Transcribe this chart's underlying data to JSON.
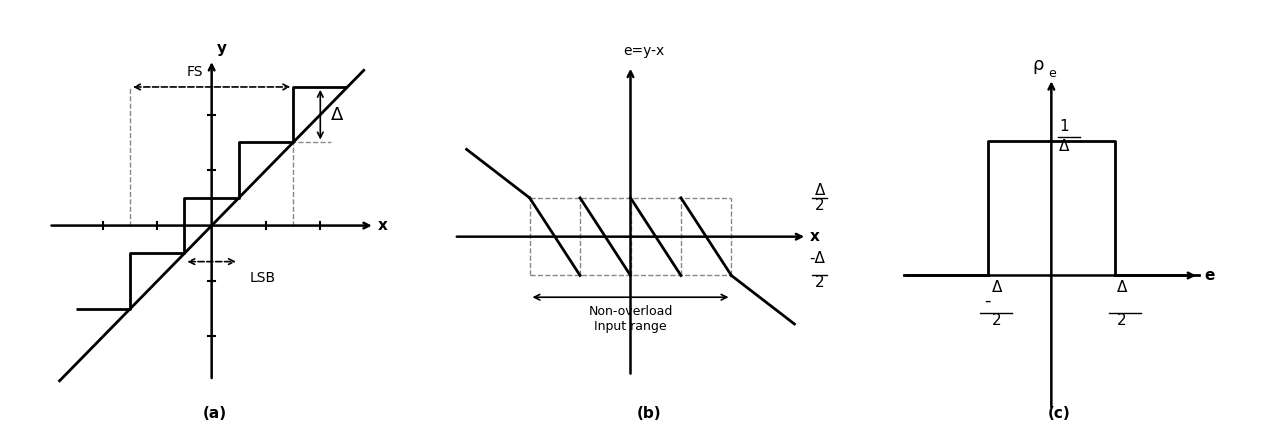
{
  "fig_width": 12.61,
  "fig_height": 4.26,
  "bg_color": "#ffffff",
  "line_color": "#000000",
  "dashed_color": "#888888",
  "panel_a": {
    "title": "(a)",
    "xlabel": "x",
    "ylabel": "y",
    "fs_label": "FS",
    "lsb_label": "LSB",
    "delta_label": "Δ"
  },
  "panel_b": {
    "title": "(b)",
    "xlabel": "x",
    "ylabel": "e=y-x",
    "delta_over_2_top": "Δ",
    "delta_over_2_bot": "2",
    "neg_delta_label": "-",
    "non_overload_label": "Non-overload\nInput range"
  },
  "panel_c": {
    "title": "(c)",
    "xlabel": "e",
    "ylabel": "ρ",
    "ylabel_sub": "e",
    "one_label": "1",
    "delta_label": "Δ",
    "delta_over_2_label": "Δ",
    "two_label": "2"
  }
}
